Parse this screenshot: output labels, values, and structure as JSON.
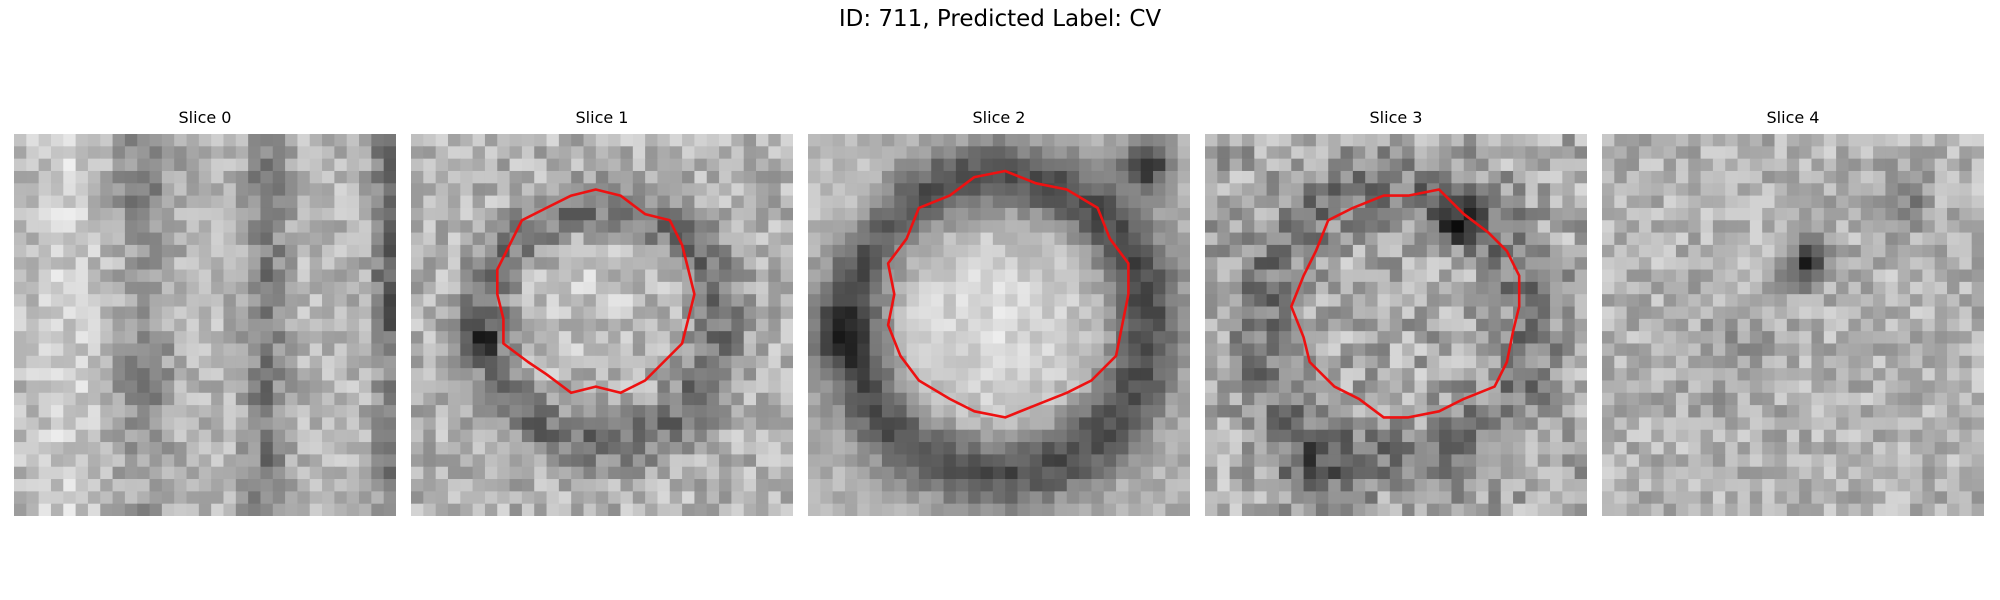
{
  "figure": {
    "title": "ID: 711, Predicted Label: CV"
  },
  "panels": [
    {
      "title": "Slice 0",
      "has_contour": false,
      "pattern": "vertical-streaks"
    },
    {
      "title": "Slice 1",
      "has_contour": true,
      "pattern": "ring"
    },
    {
      "title": "Slice 2",
      "has_contour": true,
      "pattern": "ring-strong"
    },
    {
      "title": "Slice 3",
      "has_contour": true,
      "pattern": "ring-noisy"
    },
    {
      "title": "Slice 4",
      "has_contour": false,
      "pattern": "noise-dark-spot"
    }
  ],
  "colors": {
    "contour": "#ee1111",
    "background": "#ffffff"
  },
  "icons": [
    "grayscale-slice-image",
    "red-contour-outline"
  ]
}
